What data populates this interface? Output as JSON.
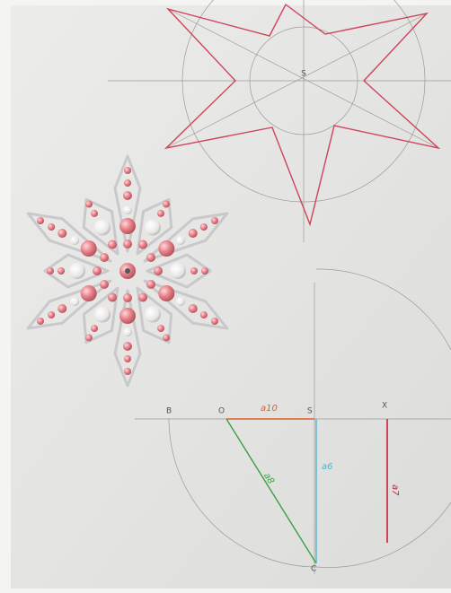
{
  "labels": {
    "s_top": "S",
    "b": "B",
    "o": "O",
    "s": "S",
    "x": "X",
    "c": "C",
    "a10": "a10",
    "a8": "a8",
    "a6": "a6",
    "a7": "a7"
  }
}
